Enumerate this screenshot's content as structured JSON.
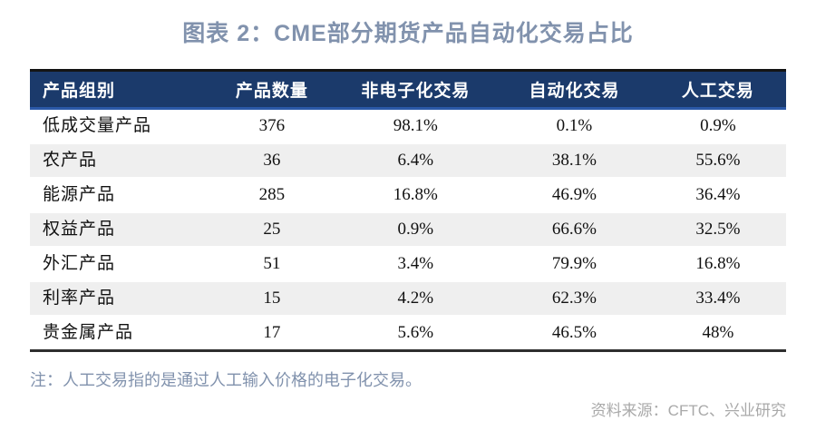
{
  "title": "图表 2：CME部分期货产品自动化交易占比",
  "note": "注：人工交易指的是通过人工输入价格的电子化交易。",
  "source": "资料来源：CFTC、兴业研究",
  "colors": {
    "header_bg": "#1b3a6b",
    "header_text": "#ffffff",
    "header_top_border": "#141414",
    "header_bottom_border": "#2b59a8",
    "row_alt_bg": "#efefef",
    "table_bottom_border": "#2e2e2e",
    "title_color": "#8192ad",
    "note_color": "#8192ad",
    "source_color": "#a9a9a9"
  },
  "table": {
    "columns": [
      "产品组别",
      "产品数量",
      "非电子化交易",
      "自动化交易",
      "人工交易"
    ],
    "rows": [
      {
        "cells": [
          "低成交量产品",
          "376",
          "98.1%",
          "0.1%",
          "0.9%"
        ]
      },
      {
        "cells": [
          "农产品",
          "36",
          "6.4%",
          "38.1%",
          "55.6%"
        ]
      },
      {
        "cells": [
          "能源产品",
          "285",
          "16.8%",
          "46.9%",
          "36.4%"
        ]
      },
      {
        "cells": [
          "权益产品",
          "25",
          "0.9%",
          "66.6%",
          "32.5%"
        ]
      },
      {
        "cells": [
          "外汇产品",
          "51",
          "3.4%",
          "79.9%",
          "16.8%"
        ]
      },
      {
        "cells": [
          "利率产品",
          "15",
          "4.2%",
          "62.3%",
          "33.4%"
        ]
      },
      {
        "cells": [
          "贵金属产品",
          "17",
          "5.6%",
          "46.5%",
          "48%"
        ]
      }
    ]
  },
  "chart_data": {
    "type": "table",
    "title": "图表 2：CME部分期货产品自动化交易占比",
    "columns": [
      "产品组别",
      "产品数量",
      "非电子化交易",
      "自动化交易",
      "人工交易"
    ],
    "rows": [
      [
        "低成交量产品",
        376,
        "98.1%",
        "0.1%",
        "0.9%"
      ],
      [
        "农产品",
        36,
        "6.4%",
        "38.1%",
        "55.6%"
      ],
      [
        "能源产品",
        285,
        "16.8%",
        "46.9%",
        "36.4%"
      ],
      [
        "权益产品",
        25,
        "0.9%",
        "66.6%",
        "32.5%"
      ],
      [
        "外汇产品",
        51,
        "3.4%",
        "79.9%",
        "16.8%"
      ],
      [
        "利率产品",
        15,
        "4.2%",
        "62.3%",
        "33.4%"
      ],
      [
        "贵金属产品",
        17,
        "5.6%",
        "46.5%",
        "48%"
      ]
    ],
    "footnote": "注：人工交易指的是通过人工输入价格的电子化交易。",
    "source": "资料来源：CFTC、兴业研究"
  }
}
